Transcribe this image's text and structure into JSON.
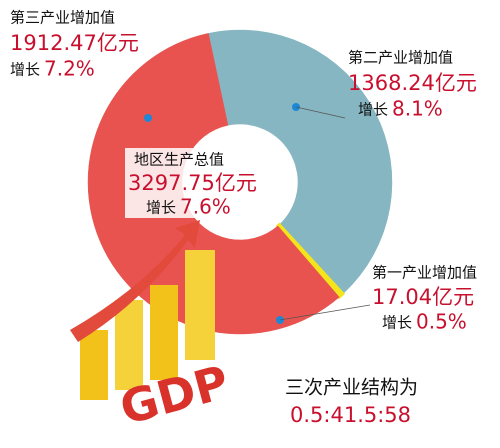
{
  "chart_data": {
    "type": "pie",
    "categories": [
      "第三产业增加值",
      "第二产业增加值",
      "第一产业增加值"
    ],
    "values": [
      1912.47,
      1368.24,
      17.04
    ],
    "value_labels": [
      "1912.47亿元",
      "1368.24亿元",
      "17.04亿元"
    ],
    "colors": [
      "#e9534f",
      "#86b6c2",
      "#f4e41c"
    ],
    "growth_prefix": "增长",
    "growth_labels": [
      "7.2%",
      "8.1%",
      "0.5%"
    ],
    "center_title": "地区生产总值",
    "center_value": "3297.75亿元",
    "center_growth": "7.6%",
    "footnote_title": "三次产业结构为",
    "footnote": "0.5:41.5:58"
  }
}
